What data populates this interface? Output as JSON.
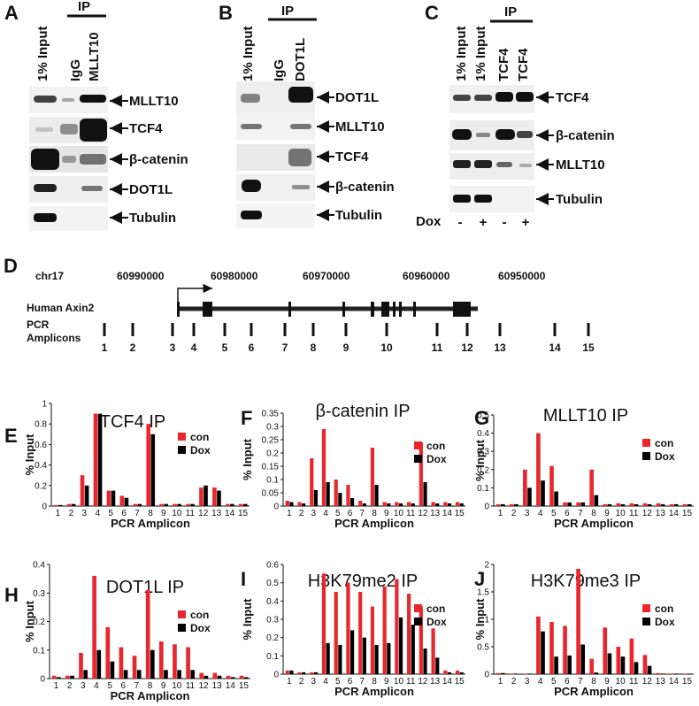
{
  "panels": {
    "A": {
      "letter": "A",
      "ip_label": "IP",
      "lanes": [
        "1% Input",
        "IgG",
        "MLLT10"
      ],
      "bands": [
        "MLLT10",
        "TCF4",
        "β-catenin",
        "DOT1L",
        "Tubulin"
      ]
    },
    "B": {
      "letter": "B",
      "ip_label": "IP",
      "lanes": [
        "1% Input",
        "IgG",
        "DOT1L"
      ],
      "bands": [
        "DOT1L",
        "MLLT10",
        "TCF4",
        "β-catenin",
        "Tubulin"
      ]
    },
    "C": {
      "letter": "C",
      "ip_label": "IP",
      "lanes": [
        "1% Input",
        "1% Input",
        "TCF4",
        "TCF4"
      ],
      "bands": [
        "TCF4",
        "β-catenin",
        "MLLT10",
        "Tubulin"
      ],
      "dox_label": "Dox",
      "dox_signs": [
        "-",
        "+",
        "-",
        "+"
      ]
    },
    "D": {
      "letter": "D",
      "chromosome": "chr17",
      "coordinates": [
        "60990000",
        "60980000",
        "60970000",
        "60960000",
        "60950000"
      ],
      "gene_label": "Human Axin2",
      "amplicon_label_1": "PCR",
      "amplicon_label_2": "Amplicons",
      "amplicons": [
        "1",
        "2",
        "3",
        "4",
        "5",
        "6",
        "7",
        "8",
        "9",
        "10",
        "11",
        "12",
        "13",
        "14",
        "15"
      ]
    }
  },
  "chart_data": [
    {
      "id": "E",
      "type": "bar",
      "title": "TCF4 IP",
      "xlabel": "PCR Amplicon",
      "ylabel": "% Input",
      "ylim": [
        0,
        1.0
      ],
      "yticks": [
        "0",
        "0.2",
        "0.4",
        "0.6",
        "0.8",
        "1"
      ],
      "categories": [
        "1",
        "2",
        "3",
        "4",
        "5",
        "6",
        "7",
        "8",
        "9",
        "10",
        "11",
        "12",
        "13",
        "14",
        "15"
      ],
      "legend_position": "right",
      "series": [
        {
          "name": "con",
          "color": "#e8262b",
          "values": [
            0.01,
            0.02,
            0.3,
            0.9,
            0.15,
            0.1,
            0.02,
            0.8,
            0.02,
            0.02,
            0.02,
            0.18,
            0.18,
            0.02,
            0.02
          ]
        },
        {
          "name": "Dox",
          "color": "#000000",
          "values": [
            0.01,
            0.02,
            0.2,
            0.9,
            0.15,
            0.08,
            0.02,
            0.7,
            0.02,
            0.02,
            0.02,
            0.2,
            0.15,
            0.02,
            0.02
          ]
        }
      ]
    },
    {
      "id": "F",
      "type": "bar",
      "title": "β-catenin IP",
      "xlabel": "PCR Amplicon",
      "ylabel": "% Input",
      "ylim": [
        0,
        0.35
      ],
      "yticks": [
        "0",
        "0.05",
        "0.1",
        "0.15",
        "0.2",
        "0.25",
        "0.3",
        "0.35"
      ],
      "categories": [
        "1",
        "2",
        "3",
        "4",
        "5",
        "6",
        "7",
        "8",
        "9",
        "10",
        "11",
        "12",
        "13",
        "14",
        "15"
      ],
      "legend_position": "right",
      "series": [
        {
          "name": "con",
          "color": "#e8262b",
          "values": [
            0.02,
            0.015,
            0.18,
            0.29,
            0.1,
            0.08,
            0.02,
            0.22,
            0.015,
            0.015,
            0.015,
            0.24,
            0.015,
            0.015,
            0.015
          ]
        },
        {
          "name": "Dox",
          "color": "#000000",
          "values": [
            0.015,
            0.01,
            0.06,
            0.09,
            0.05,
            0.03,
            0.01,
            0.08,
            0.01,
            0.01,
            0.01,
            0.09,
            0.01,
            0.01,
            0.01
          ]
        }
      ]
    },
    {
      "id": "G",
      "type": "bar",
      "title": "MLLT10 IP",
      "xlabel": "PCR Amplicon",
      "ylabel": "% Input",
      "ylim": [
        0,
        0.5
      ],
      "yticks": [
        "0",
        "0.1",
        "0.2",
        "0.3",
        "0.4",
        "0.5"
      ],
      "categories": [
        "1",
        "2",
        "3",
        "4",
        "5",
        "6",
        "7",
        "8",
        "9",
        "10",
        "11",
        "12",
        "13",
        "14",
        "15"
      ],
      "legend_position": "right",
      "series": [
        {
          "name": "con",
          "color": "#e8262b",
          "values": [
            0.01,
            0.01,
            0.2,
            0.4,
            0.22,
            0.02,
            0.02,
            0.2,
            0.01,
            0.015,
            0.015,
            0.015,
            0.015,
            0.01,
            0.01
          ]
        },
        {
          "name": "Dox",
          "color": "#000000",
          "values": [
            0.01,
            0.01,
            0.1,
            0.14,
            0.08,
            0.02,
            0.02,
            0.06,
            0.01,
            0.01,
            0.01,
            0.01,
            0.01,
            0.01,
            0.01
          ]
        }
      ]
    },
    {
      "id": "H",
      "type": "bar",
      "title": "DOT1L IP",
      "xlabel": "PCR Amplicon",
      "ylabel": "% Input",
      "ylim": [
        0,
        0.4
      ],
      "yticks": [
        "0",
        "0.1",
        "0.2",
        "0.3",
        "0.4"
      ],
      "categories": [
        "1",
        "2",
        "3",
        "4",
        "5",
        "6",
        "7",
        "8",
        "9",
        "10",
        "11",
        "12",
        "13",
        "14",
        "15"
      ],
      "legend_position": "right",
      "series": [
        {
          "name": "con",
          "color": "#e8262b",
          "values": [
            0.01,
            0.01,
            0.09,
            0.36,
            0.18,
            0.11,
            0.08,
            0.31,
            0.13,
            0.12,
            0.11,
            0.02,
            0.02,
            0.01,
            0.01
          ]
        },
        {
          "name": "Dox",
          "color": "#000000",
          "values": [
            0.005,
            0.01,
            0.03,
            0.1,
            0.06,
            0.03,
            0.03,
            0.1,
            0.03,
            0.03,
            0.03,
            0.01,
            0.01,
            0.005,
            0.005
          ]
        }
      ]
    },
    {
      "id": "I",
      "type": "bar",
      "title": "H3K79me2 IP",
      "xlabel": "PCR Amplicon",
      "ylabel": "% Input",
      "ylim": [
        0,
        0.6
      ],
      "yticks": [
        "0",
        "0.1",
        "0.2",
        "0.3",
        "0.4",
        "0.5",
        "0.6"
      ],
      "categories": [
        "1",
        "2",
        "3",
        "4",
        "5",
        "6",
        "7",
        "8",
        "9",
        "10",
        "11",
        "12",
        "13",
        "14",
        "15"
      ],
      "legend_position": "right",
      "series": [
        {
          "name": "con",
          "color": "#e8262b",
          "values": [
            0.02,
            0.01,
            0.01,
            0.55,
            0.45,
            0.5,
            0.45,
            0.37,
            0.48,
            0.52,
            0.44,
            0.37,
            0.25,
            0.02,
            0.02
          ]
        },
        {
          "name": "Dox",
          "color": "#000000",
          "values": [
            0.02,
            0.01,
            0.01,
            0.17,
            0.16,
            0.24,
            0.2,
            0.16,
            0.17,
            0.31,
            0.27,
            0.14,
            0.09,
            0.01,
            0.01
          ]
        }
      ]
    },
    {
      "id": "J",
      "type": "bar",
      "title": "H3K79me3 IP",
      "xlabel": "PCR Amplicon",
      "ylabel": "% Input",
      "ylim": [
        0,
        2
      ],
      "yticks": [
        "0",
        "0.5",
        "1",
        "1.5",
        "2"
      ],
      "categories": [
        "1",
        "2",
        "3",
        "4",
        "5",
        "6",
        "7",
        "8",
        "9",
        "10",
        "11",
        "12",
        "13",
        "14",
        "15"
      ],
      "legend_position": "right",
      "series": [
        {
          "name": "con",
          "color": "#e8262b",
          "values": [
            0.02,
            0.01,
            0.01,
            1.05,
            0.95,
            0.88,
            1.92,
            0.28,
            0.85,
            0.5,
            0.65,
            0.35,
            0.02,
            0.01,
            0.01
          ]
        },
        {
          "name": "Dox",
          "color": "#000000",
          "values": [
            0.02,
            0.01,
            0.01,
            0.78,
            0.32,
            0.34,
            0.54,
            0.03,
            0.38,
            0.32,
            0.22,
            0.15,
            0.01,
            0.01,
            0.01
          ]
        }
      ]
    }
  ]
}
